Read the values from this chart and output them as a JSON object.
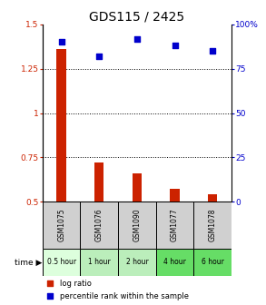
{
  "title": "GDS115 / 2425",
  "categories": [
    "GSM1075",
    "GSM1076",
    "GSM1090",
    "GSM1077",
    "GSM1078"
  ],
  "time_labels": [
    "0.5 hour",
    "1 hour",
    "2 hour",
    "4 hour",
    "6 hour"
  ],
  "log_ratio": [
    1.36,
    0.72,
    0.66,
    0.57,
    0.54
  ],
  "percentile": [
    90,
    82,
    92,
    88,
    85
  ],
  "bar_color": "#cc2200",
  "dot_color": "#0000cc",
  "ylim_left": [
    0.5,
    1.5
  ],
  "ylim_right": [
    0,
    100
  ],
  "yticks_left": [
    0.5,
    0.75,
    1.0,
    1.25,
    1.5
  ],
  "yticks_right": [
    0,
    25,
    50,
    75,
    100
  ],
  "ytick_labels_left": [
    "0.5",
    "0.75",
    "1",
    "1.25",
    "1.5"
  ],
  "ytick_labels_right": [
    "0",
    "25",
    "50",
    "75",
    "100%"
  ],
  "hlines": [
    0.75,
    1.0,
    1.25
  ],
  "cell_bg_gray": "#d0d0d0",
  "cell_bg_green_0": "#ddffdd",
  "cell_bg_green_1": "#bbeebb",
  "cell_bg_green_2": "#bbeebb",
  "cell_bg_green_3": "#66dd66",
  "cell_bg_green_4": "#66dd66",
  "legend_items": [
    "log ratio",
    "percentile rank within the sample"
  ],
  "legend_colors": [
    "#cc2200",
    "#0000cc"
  ],
  "title_fontsize": 10,
  "bar_width": 0.25
}
